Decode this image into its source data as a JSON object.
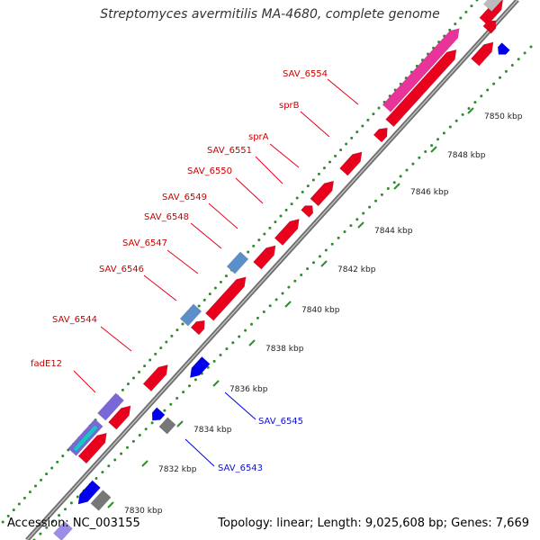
{
  "title": "Streptomyces avermitilis MA-4680, complete genome",
  "accession": "Accession: NC_003155",
  "summary": "Topology: linear; Length: 9,025,608 bp; Genes: 7,669",
  "colors": {
    "forward": "#e8001c",
    "reverse": "#0000ee",
    "other": "#5b8fc9",
    "pink": "#e8339a",
    "purple": "#7b68d8",
    "gray": "#777777",
    "backbone": "#8c8c8c",
    "gc_dots": "#2e8b2e"
  },
  "ticks": [
    "7830 kbp",
    "7832 kbp",
    "7834 kbp",
    "7836 kbp",
    "7838 kbp",
    "7840 kbp",
    "7842 kbp",
    "7844 kbp",
    "7846 kbp",
    "7848 kbp",
    "7850 kbp"
  ],
  "top_labels": [
    "fadE12",
    "SAV_6544",
    "SAV_6546",
    "SAV_6547",
    "SAV_6548",
    "SAV_6549",
    "SAV_6550",
    "SAV_6551",
    "sprA",
    "sprB",
    "SAV_6554"
  ],
  "bottom_labels": [
    "SAV_6543",
    "SAV_6545"
  ]
}
